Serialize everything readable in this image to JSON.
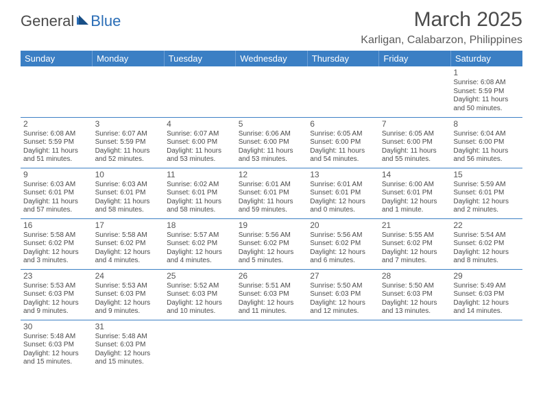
{
  "logo": {
    "part1": "General",
    "part2": "Blue"
  },
  "title": "March 2025",
  "location": "Karligan, Calabarzon, Philippines",
  "colors": {
    "header_bg": "#3b7fc4",
    "header_text": "#ffffff",
    "row_border": "#3b7fc4",
    "body_text": "#4a4a4a",
    "background": "#ffffff",
    "logo_general": "#4a4a4a",
    "logo_blue": "#2a6db6"
  },
  "dayHeaders": [
    "Sunday",
    "Monday",
    "Tuesday",
    "Wednesday",
    "Thursday",
    "Friday",
    "Saturday"
  ],
  "calendar": {
    "type": "table",
    "columns": 7,
    "rows": 6,
    "fontsize_header": 13,
    "fontsize_daynum": 12,
    "fontsize_detail": 10
  },
  "weeks": [
    [
      null,
      null,
      null,
      null,
      null,
      null,
      {
        "n": "1",
        "sunrise": "Sunrise: 6:08 AM",
        "sunset": "Sunset: 5:59 PM",
        "daylight": "Daylight: 11 hours and 50 minutes."
      }
    ],
    [
      {
        "n": "2",
        "sunrise": "Sunrise: 6:08 AM",
        "sunset": "Sunset: 5:59 PM",
        "daylight": "Daylight: 11 hours and 51 minutes."
      },
      {
        "n": "3",
        "sunrise": "Sunrise: 6:07 AM",
        "sunset": "Sunset: 5:59 PM",
        "daylight": "Daylight: 11 hours and 52 minutes."
      },
      {
        "n": "4",
        "sunrise": "Sunrise: 6:07 AM",
        "sunset": "Sunset: 6:00 PM",
        "daylight": "Daylight: 11 hours and 53 minutes."
      },
      {
        "n": "5",
        "sunrise": "Sunrise: 6:06 AM",
        "sunset": "Sunset: 6:00 PM",
        "daylight": "Daylight: 11 hours and 53 minutes."
      },
      {
        "n": "6",
        "sunrise": "Sunrise: 6:05 AM",
        "sunset": "Sunset: 6:00 PM",
        "daylight": "Daylight: 11 hours and 54 minutes."
      },
      {
        "n": "7",
        "sunrise": "Sunrise: 6:05 AM",
        "sunset": "Sunset: 6:00 PM",
        "daylight": "Daylight: 11 hours and 55 minutes."
      },
      {
        "n": "8",
        "sunrise": "Sunrise: 6:04 AM",
        "sunset": "Sunset: 6:00 PM",
        "daylight": "Daylight: 11 hours and 56 minutes."
      }
    ],
    [
      {
        "n": "9",
        "sunrise": "Sunrise: 6:03 AM",
        "sunset": "Sunset: 6:01 PM",
        "daylight": "Daylight: 11 hours and 57 minutes."
      },
      {
        "n": "10",
        "sunrise": "Sunrise: 6:03 AM",
        "sunset": "Sunset: 6:01 PM",
        "daylight": "Daylight: 11 hours and 58 minutes."
      },
      {
        "n": "11",
        "sunrise": "Sunrise: 6:02 AM",
        "sunset": "Sunset: 6:01 PM",
        "daylight": "Daylight: 11 hours and 58 minutes."
      },
      {
        "n": "12",
        "sunrise": "Sunrise: 6:01 AM",
        "sunset": "Sunset: 6:01 PM",
        "daylight": "Daylight: 11 hours and 59 minutes."
      },
      {
        "n": "13",
        "sunrise": "Sunrise: 6:01 AM",
        "sunset": "Sunset: 6:01 PM",
        "daylight": "Daylight: 12 hours and 0 minutes."
      },
      {
        "n": "14",
        "sunrise": "Sunrise: 6:00 AM",
        "sunset": "Sunset: 6:01 PM",
        "daylight": "Daylight: 12 hours and 1 minute."
      },
      {
        "n": "15",
        "sunrise": "Sunrise: 5:59 AM",
        "sunset": "Sunset: 6:01 PM",
        "daylight": "Daylight: 12 hours and 2 minutes."
      }
    ],
    [
      {
        "n": "16",
        "sunrise": "Sunrise: 5:58 AM",
        "sunset": "Sunset: 6:02 PM",
        "daylight": "Daylight: 12 hours and 3 minutes."
      },
      {
        "n": "17",
        "sunrise": "Sunrise: 5:58 AM",
        "sunset": "Sunset: 6:02 PM",
        "daylight": "Daylight: 12 hours and 4 minutes."
      },
      {
        "n": "18",
        "sunrise": "Sunrise: 5:57 AM",
        "sunset": "Sunset: 6:02 PM",
        "daylight": "Daylight: 12 hours and 4 minutes."
      },
      {
        "n": "19",
        "sunrise": "Sunrise: 5:56 AM",
        "sunset": "Sunset: 6:02 PM",
        "daylight": "Daylight: 12 hours and 5 minutes."
      },
      {
        "n": "20",
        "sunrise": "Sunrise: 5:56 AM",
        "sunset": "Sunset: 6:02 PM",
        "daylight": "Daylight: 12 hours and 6 minutes."
      },
      {
        "n": "21",
        "sunrise": "Sunrise: 5:55 AM",
        "sunset": "Sunset: 6:02 PM",
        "daylight": "Daylight: 12 hours and 7 minutes."
      },
      {
        "n": "22",
        "sunrise": "Sunrise: 5:54 AM",
        "sunset": "Sunset: 6:02 PM",
        "daylight": "Daylight: 12 hours and 8 minutes."
      }
    ],
    [
      {
        "n": "23",
        "sunrise": "Sunrise: 5:53 AM",
        "sunset": "Sunset: 6:03 PM",
        "daylight": "Daylight: 12 hours and 9 minutes."
      },
      {
        "n": "24",
        "sunrise": "Sunrise: 5:53 AM",
        "sunset": "Sunset: 6:03 PM",
        "daylight": "Daylight: 12 hours and 9 minutes."
      },
      {
        "n": "25",
        "sunrise": "Sunrise: 5:52 AM",
        "sunset": "Sunset: 6:03 PM",
        "daylight": "Daylight: 12 hours and 10 minutes."
      },
      {
        "n": "26",
        "sunrise": "Sunrise: 5:51 AM",
        "sunset": "Sunset: 6:03 PM",
        "daylight": "Daylight: 12 hours and 11 minutes."
      },
      {
        "n": "27",
        "sunrise": "Sunrise: 5:50 AM",
        "sunset": "Sunset: 6:03 PM",
        "daylight": "Daylight: 12 hours and 12 minutes."
      },
      {
        "n": "28",
        "sunrise": "Sunrise: 5:50 AM",
        "sunset": "Sunset: 6:03 PM",
        "daylight": "Daylight: 12 hours and 13 minutes."
      },
      {
        "n": "29",
        "sunrise": "Sunrise: 5:49 AM",
        "sunset": "Sunset: 6:03 PM",
        "daylight": "Daylight: 12 hours and 14 minutes."
      }
    ],
    [
      {
        "n": "30",
        "sunrise": "Sunrise: 5:48 AM",
        "sunset": "Sunset: 6:03 PM",
        "daylight": "Daylight: 12 hours and 15 minutes."
      },
      {
        "n": "31",
        "sunrise": "Sunrise: 5:48 AM",
        "sunset": "Sunset: 6:03 PM",
        "daylight": "Daylight: 12 hours and 15 minutes."
      },
      null,
      null,
      null,
      null,
      null
    ]
  ]
}
